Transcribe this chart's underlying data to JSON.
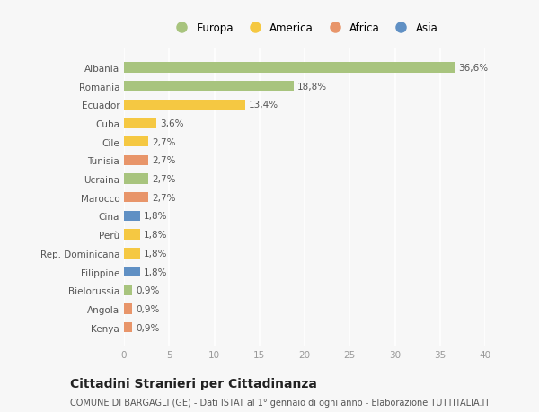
{
  "countries": [
    "Albania",
    "Romania",
    "Ecuador",
    "Cuba",
    "Cile",
    "Tunisia",
    "Ucraina",
    "Marocco",
    "Cina",
    "Perù",
    "Rep. Dominicana",
    "Filippine",
    "Bielorussia",
    "Angola",
    "Kenya"
  ],
  "values": [
    36.6,
    18.8,
    13.4,
    3.6,
    2.7,
    2.7,
    2.7,
    2.7,
    1.8,
    1.8,
    1.8,
    1.8,
    0.9,
    0.9,
    0.9
  ],
  "labels": [
    "36,6%",
    "18,8%",
    "13,4%",
    "3,6%",
    "2,7%",
    "2,7%",
    "2,7%",
    "2,7%",
    "1,8%",
    "1,8%",
    "1,8%",
    "1,8%",
    "0,9%",
    "0,9%",
    "0,9%"
  ],
  "continents": [
    "Europa",
    "Europa",
    "America",
    "America",
    "America",
    "Africa",
    "Europa",
    "Africa",
    "Asia",
    "America",
    "America",
    "Asia",
    "Europa",
    "Africa",
    "Africa"
  ],
  "continent_colors": {
    "Europa": "#a8c47e",
    "America": "#f5c842",
    "Africa": "#e8956a",
    "Asia": "#6090c4"
  },
  "legend_order": [
    "Europa",
    "America",
    "Africa",
    "Asia"
  ],
  "xlim": [
    0,
    40
  ],
  "xticks": [
    0,
    5,
    10,
    15,
    20,
    25,
    30,
    35,
    40
  ],
  "title": "Cittadini Stranieri per Cittadinanza",
  "subtitle": "COMUNE DI BARGAGLI (GE) - Dati ISTAT al 1° gennaio di ogni anno - Elaborazione TUTTITALIA.IT",
  "background_color": "#f7f7f7",
  "bar_height": 0.55,
  "grid_color": "#ffffff",
  "label_fontsize": 7.5,
  "tick_fontsize": 7.5,
  "title_fontsize": 10,
  "subtitle_fontsize": 7.0,
  "legend_fontsize": 8.5
}
